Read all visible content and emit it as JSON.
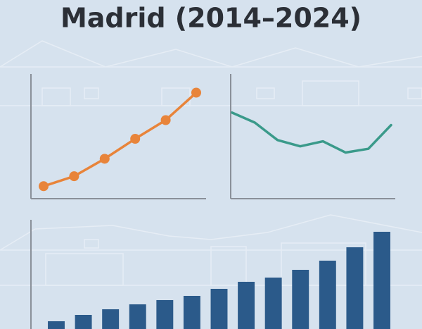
{
  "title": "Madrid (2014–2024)",
  "chart_data": [
    {
      "type": "line",
      "x": [
        null,
        null,
        null,
        null,
        null,
        null
      ],
      "values": [
        10,
        18,
        32,
        48,
        63,
        85
      ],
      "color": "#e8843a",
      "markers": true,
      "ylim": [
        0,
        100
      ]
    },
    {
      "type": "line",
      "x": [
        null,
        null,
        null,
        null,
        null,
        null,
        null,
        null
      ],
      "values": [
        69,
        61,
        47,
        42,
        46,
        37,
        40,
        59
      ],
      "color": "#3a9a8a",
      "markers": false,
      "ylim": [
        0,
        100
      ]
    },
    {
      "type": "bar",
      "categories": [
        null,
        null,
        null,
        null,
        null,
        null,
        null,
        null,
        null,
        null,
        null,
        null,
        null
      ],
      "values": [
        11,
        20,
        28,
        35,
        41,
        47,
        57,
        67,
        73,
        84,
        97,
        116,
        138
      ],
      "color": "#2b5a8a",
      "ylim": [
        0,
        155
      ]
    }
  ]
}
